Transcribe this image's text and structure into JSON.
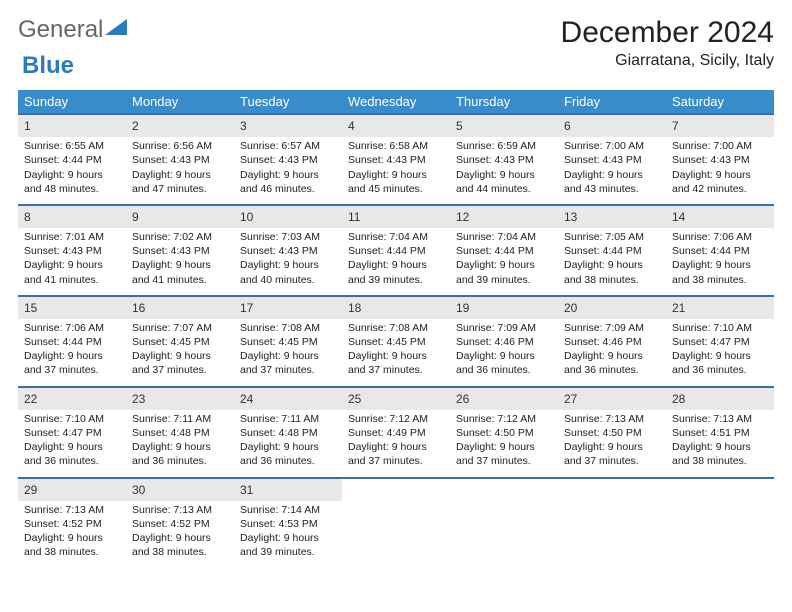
{
  "logo": {
    "text1": "General",
    "text2": "Blue"
  },
  "title": "December 2024",
  "location": "Giarratana, Sicily, Italy",
  "colors": {
    "header_bg": "#3a8bc9",
    "row_border": "#3a6ea8",
    "daynum_bg": "#e8e8e8",
    "logo_blue": "#2b7bbf"
  },
  "weekdays": [
    "Sunday",
    "Monday",
    "Tuesday",
    "Wednesday",
    "Thursday",
    "Friday",
    "Saturday"
  ],
  "weeks": [
    [
      {
        "n": "1",
        "sr": "Sunrise: 6:55 AM",
        "ss": "Sunset: 4:44 PM",
        "d1": "Daylight: 9 hours",
        "d2": "and 48 minutes."
      },
      {
        "n": "2",
        "sr": "Sunrise: 6:56 AM",
        "ss": "Sunset: 4:43 PM",
        "d1": "Daylight: 9 hours",
        "d2": "and 47 minutes."
      },
      {
        "n": "3",
        "sr": "Sunrise: 6:57 AM",
        "ss": "Sunset: 4:43 PM",
        "d1": "Daylight: 9 hours",
        "d2": "and 46 minutes."
      },
      {
        "n": "4",
        "sr": "Sunrise: 6:58 AM",
        "ss": "Sunset: 4:43 PM",
        "d1": "Daylight: 9 hours",
        "d2": "and 45 minutes."
      },
      {
        "n": "5",
        "sr": "Sunrise: 6:59 AM",
        "ss": "Sunset: 4:43 PM",
        "d1": "Daylight: 9 hours",
        "d2": "and 44 minutes."
      },
      {
        "n": "6",
        "sr": "Sunrise: 7:00 AM",
        "ss": "Sunset: 4:43 PM",
        "d1": "Daylight: 9 hours",
        "d2": "and 43 minutes."
      },
      {
        "n": "7",
        "sr": "Sunrise: 7:00 AM",
        "ss": "Sunset: 4:43 PM",
        "d1": "Daylight: 9 hours",
        "d2": "and 42 minutes."
      }
    ],
    [
      {
        "n": "8",
        "sr": "Sunrise: 7:01 AM",
        "ss": "Sunset: 4:43 PM",
        "d1": "Daylight: 9 hours",
        "d2": "and 41 minutes."
      },
      {
        "n": "9",
        "sr": "Sunrise: 7:02 AM",
        "ss": "Sunset: 4:43 PM",
        "d1": "Daylight: 9 hours",
        "d2": "and 41 minutes."
      },
      {
        "n": "10",
        "sr": "Sunrise: 7:03 AM",
        "ss": "Sunset: 4:43 PM",
        "d1": "Daylight: 9 hours",
        "d2": "and 40 minutes."
      },
      {
        "n": "11",
        "sr": "Sunrise: 7:04 AM",
        "ss": "Sunset: 4:44 PM",
        "d1": "Daylight: 9 hours",
        "d2": "and 39 minutes."
      },
      {
        "n": "12",
        "sr": "Sunrise: 7:04 AM",
        "ss": "Sunset: 4:44 PM",
        "d1": "Daylight: 9 hours",
        "d2": "and 39 minutes."
      },
      {
        "n": "13",
        "sr": "Sunrise: 7:05 AM",
        "ss": "Sunset: 4:44 PM",
        "d1": "Daylight: 9 hours",
        "d2": "and 38 minutes."
      },
      {
        "n": "14",
        "sr": "Sunrise: 7:06 AM",
        "ss": "Sunset: 4:44 PM",
        "d1": "Daylight: 9 hours",
        "d2": "and 38 minutes."
      }
    ],
    [
      {
        "n": "15",
        "sr": "Sunrise: 7:06 AM",
        "ss": "Sunset: 4:44 PM",
        "d1": "Daylight: 9 hours",
        "d2": "and 37 minutes."
      },
      {
        "n": "16",
        "sr": "Sunrise: 7:07 AM",
        "ss": "Sunset: 4:45 PM",
        "d1": "Daylight: 9 hours",
        "d2": "and 37 minutes."
      },
      {
        "n": "17",
        "sr": "Sunrise: 7:08 AM",
        "ss": "Sunset: 4:45 PM",
        "d1": "Daylight: 9 hours",
        "d2": "and 37 minutes."
      },
      {
        "n": "18",
        "sr": "Sunrise: 7:08 AM",
        "ss": "Sunset: 4:45 PM",
        "d1": "Daylight: 9 hours",
        "d2": "and 37 minutes."
      },
      {
        "n": "19",
        "sr": "Sunrise: 7:09 AM",
        "ss": "Sunset: 4:46 PM",
        "d1": "Daylight: 9 hours",
        "d2": "and 36 minutes."
      },
      {
        "n": "20",
        "sr": "Sunrise: 7:09 AM",
        "ss": "Sunset: 4:46 PM",
        "d1": "Daylight: 9 hours",
        "d2": "and 36 minutes."
      },
      {
        "n": "21",
        "sr": "Sunrise: 7:10 AM",
        "ss": "Sunset: 4:47 PM",
        "d1": "Daylight: 9 hours",
        "d2": "and 36 minutes."
      }
    ],
    [
      {
        "n": "22",
        "sr": "Sunrise: 7:10 AM",
        "ss": "Sunset: 4:47 PM",
        "d1": "Daylight: 9 hours",
        "d2": "and 36 minutes."
      },
      {
        "n": "23",
        "sr": "Sunrise: 7:11 AM",
        "ss": "Sunset: 4:48 PM",
        "d1": "Daylight: 9 hours",
        "d2": "and 36 minutes."
      },
      {
        "n": "24",
        "sr": "Sunrise: 7:11 AM",
        "ss": "Sunset: 4:48 PM",
        "d1": "Daylight: 9 hours",
        "d2": "and 36 minutes."
      },
      {
        "n": "25",
        "sr": "Sunrise: 7:12 AM",
        "ss": "Sunset: 4:49 PM",
        "d1": "Daylight: 9 hours",
        "d2": "and 37 minutes."
      },
      {
        "n": "26",
        "sr": "Sunrise: 7:12 AM",
        "ss": "Sunset: 4:50 PM",
        "d1": "Daylight: 9 hours",
        "d2": "and 37 minutes."
      },
      {
        "n": "27",
        "sr": "Sunrise: 7:13 AM",
        "ss": "Sunset: 4:50 PM",
        "d1": "Daylight: 9 hours",
        "d2": "and 37 minutes."
      },
      {
        "n": "28",
        "sr": "Sunrise: 7:13 AM",
        "ss": "Sunset: 4:51 PM",
        "d1": "Daylight: 9 hours",
        "d2": "and 38 minutes."
      }
    ],
    [
      {
        "n": "29",
        "sr": "Sunrise: 7:13 AM",
        "ss": "Sunset: 4:52 PM",
        "d1": "Daylight: 9 hours",
        "d2": "and 38 minutes."
      },
      {
        "n": "30",
        "sr": "Sunrise: 7:13 AM",
        "ss": "Sunset: 4:52 PM",
        "d1": "Daylight: 9 hours",
        "d2": "and 38 minutes."
      },
      {
        "n": "31",
        "sr": "Sunrise: 7:14 AM",
        "ss": "Sunset: 4:53 PM",
        "d1": "Daylight: 9 hours",
        "d2": "and 39 minutes."
      },
      null,
      null,
      null,
      null
    ]
  ]
}
